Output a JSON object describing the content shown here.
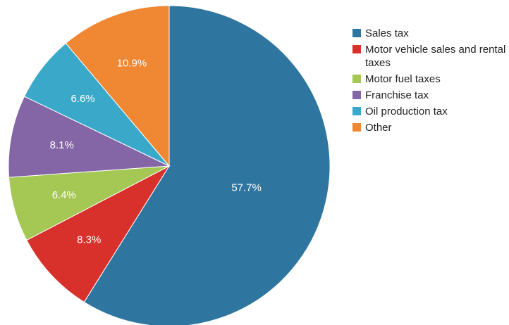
{
  "chart_data": {
    "type": "pie",
    "categories": [
      "Sales tax",
      "Motor vehicle sales and rental taxes",
      "Motor fuel taxes",
      "Franchise tax",
      "Oil production tax",
      "Other"
    ],
    "values": [
      57.7,
      8.3,
      6.4,
      8.1,
      6.6,
      10.9
    ],
    "value_labels": [
      "57.7%",
      "8.3%",
      "6.4%",
      "8.1%",
      "6.6%",
      "10.9%"
    ],
    "colors": [
      "#2e75a0",
      "#d8302b",
      "#a5c753",
      "#8466a6",
      "#3aa9c9",
      "#f08732"
    ],
    "legend": "right"
  }
}
